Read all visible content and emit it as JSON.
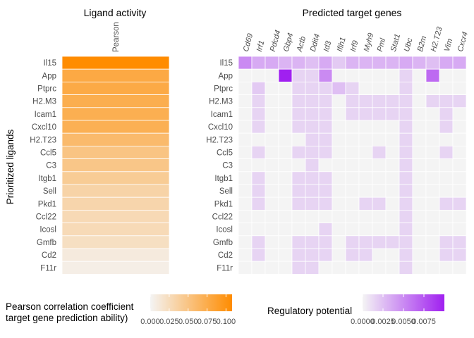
{
  "chart_data": [
    {
      "type": "heatmap",
      "title": "Ligand activity",
      "ylabel": "Prioritized ligands",
      "columns": [
        "Pearson"
      ],
      "rows": [
        "Il15",
        "App",
        "Ptprc",
        "H2.M3",
        "Icam1",
        "Cxcl10",
        "H2.T23",
        "Ccl5",
        "C3",
        "Itgb1",
        "Sell",
        "Pkd1",
        "Ccl22",
        "Icosl",
        "Gmfb",
        "Cd2",
        "F11r"
      ],
      "values": [
        0.108,
        0.078,
        0.077,
        0.073,
        0.072,
        0.071,
        0.06,
        0.05,
        0.048,
        0.042,
        0.034,
        0.032,
        0.028,
        0.027,
        0.022,
        0.01,
        0.006
      ],
      "colorscale": [
        "#f4f4f4",
        "#ff8c00"
      ],
      "range": [
        0,
        0.108
      ],
      "legend": {
        "title_line1": "Pearson correlation coefficient",
        "title_line2": "target gene prediction ability)",
        "ticks": [
          "0.000",
          "0.025",
          "0.050",
          "0.075",
          "0.100"
        ],
        "tick_values": [
          0,
          0.025,
          0.05,
          0.075,
          0.1
        ],
        "placement": "bottom-left"
      }
    },
    {
      "type": "heatmap",
      "title": "Predicted target genes",
      "columns": [
        "Cd69",
        "Irf1",
        "Pdcd4",
        "Gbp4",
        "Actb",
        "Ddit4",
        "Id3",
        "Ifih1",
        "Irf9",
        "Myh9",
        "Pml",
        "Stat1",
        "Ubc",
        "B2m",
        "H2.T23",
        "Vim",
        "Cxcr4"
      ],
      "rows": [
        "Il15",
        "App",
        "Ptprc",
        "H2.M3",
        "Icam1",
        "Cxcl10",
        "H2.T23",
        "Ccl5",
        "C3",
        "Itgb1",
        "Sell",
        "Pkd1",
        "Ccl22",
        "Icosl",
        "Gmfb",
        "Cd2",
        "F11r"
      ],
      "values": [
        [
          0.005,
          0.0035,
          0.0035,
          0.003,
          0.003,
          0.0025,
          0.0035,
          0.002,
          0.003,
          0.003,
          0.003,
          0.003,
          0.0035,
          0.003,
          0.0025,
          0.0035,
          0.0035
        ],
        [
          0,
          0,
          0,
          0.01,
          0.0015,
          0.0015,
          0.005,
          0,
          0,
          0,
          0,
          0,
          0.0015,
          0,
          0.0065,
          0,
          0
        ],
        [
          0,
          0.002,
          0,
          0,
          0.0015,
          0.0015,
          0.0015,
          0.0025,
          0.0015,
          0,
          0,
          0,
          0.0015,
          0,
          0,
          0,
          0
        ],
        [
          0,
          0.0015,
          0,
          0,
          0.0015,
          0.0015,
          0.0015,
          0,
          0.0015,
          0.0015,
          0.0015,
          0.0015,
          0.0015,
          0,
          0.0015,
          0.0015,
          0.0015
        ],
        [
          0,
          0.0015,
          0,
          0,
          0.0015,
          0.0015,
          0.0015,
          0,
          0.0015,
          0.0015,
          0.0015,
          0.0015,
          0.0015,
          0,
          0,
          0.0015,
          0
        ],
        [
          0,
          0.0015,
          0,
          0,
          0.0015,
          0.0015,
          0.0015,
          0,
          0,
          0,
          0,
          0,
          0.0015,
          0,
          0,
          0.0015,
          0
        ],
        [
          0,
          0,
          0,
          0,
          0,
          0.0015,
          0.0015,
          0,
          0,
          0,
          0,
          0,
          0.0015,
          0,
          0,
          0,
          0
        ],
        [
          0,
          0.0015,
          0,
          0,
          0.0015,
          0.0015,
          0.0015,
          0,
          0,
          0,
          0.0015,
          0,
          0.0015,
          0,
          0,
          0.0015,
          0
        ],
        [
          0,
          0,
          0,
          0,
          0,
          0.0015,
          0,
          0,
          0,
          0,
          0,
          0,
          0.0015,
          0,
          0,
          0,
          0
        ],
        [
          0,
          0.0015,
          0,
          0,
          0.0015,
          0.0015,
          0.0015,
          0,
          0,
          0,
          0,
          0,
          0.0015,
          0,
          0,
          0,
          0
        ],
        [
          0,
          0.0015,
          0,
          0,
          0.0015,
          0.0015,
          0.0015,
          0,
          0,
          0,
          0,
          0,
          0.0015,
          0,
          0,
          0,
          0
        ],
        [
          0,
          0.0015,
          0,
          0,
          0.0015,
          0.0015,
          0.0015,
          0,
          0,
          0.0015,
          0.0015,
          0,
          0.0015,
          0,
          0,
          0.0015,
          0.0015
        ],
        [
          0,
          0,
          0,
          0,
          0,
          0,
          0,
          0,
          0,
          0,
          0,
          0,
          0.0015,
          0,
          0,
          0,
          0
        ],
        [
          0,
          0,
          0,
          0,
          0,
          0,
          0.0015,
          0,
          0,
          0,
          0,
          0,
          0.0015,
          0,
          0,
          0,
          0
        ],
        [
          0,
          0.0015,
          0,
          0,
          0.0015,
          0.0015,
          0.0015,
          0,
          0.0015,
          0.0015,
          0.0015,
          0.0015,
          0.0015,
          0,
          0,
          0.0015,
          0.0015
        ],
        [
          0,
          0.0015,
          0,
          0,
          0.0015,
          0.0015,
          0.0015,
          0,
          0.0015,
          0.0015,
          0,
          0,
          0.0015,
          0,
          0,
          0.0015,
          0.0015
        ],
        [
          0,
          0,
          0,
          0,
          0.0015,
          0.0015,
          0,
          0,
          0,
          0,
          0,
          0,
          0.0015,
          0,
          0,
          0,
          0
        ]
      ],
      "colorscale": [
        "#f4f4f4",
        "#a020f0"
      ],
      "range": [
        0,
        0.01
      ],
      "legend": {
        "title": "Regulatory potential",
        "ticks": [
          "0.0000",
          "0.0025",
          "0.0050",
          "0.0075"
        ],
        "tick_values": [
          0,
          0.0025,
          0.005,
          0.0075
        ],
        "placement": "bottom-right"
      }
    }
  ]
}
